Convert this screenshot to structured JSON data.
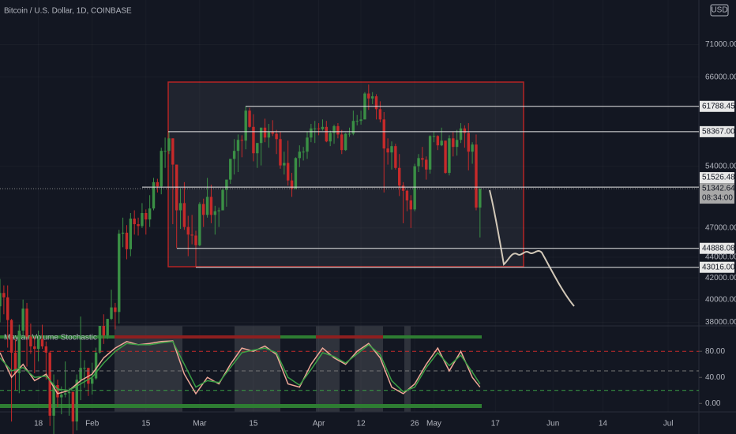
{
  "chart_data": {
    "type": "candlestick",
    "title": "Bitcoin / U.S. Dollar, 1D, COINBASE",
    "currency": "USD",
    "countdown": "08:34:00",
    "up_color": "#3a8f45",
    "down_color": "#c62a2a",
    "log_scale": true,
    "ylim": [
      37700,
      78500
    ],
    "xlim": [
      "01-08",
      "07-09"
    ],
    "x": [
      "01-08",
      "01-09",
      "01-10",
      "01-11",
      "01-12",
      "01-13",
      "01-14",
      "01-15",
      "01-16",
      "01-17",
      "01-18",
      "01-19",
      "01-20",
      "01-21",
      "01-22",
      "01-23",
      "01-24",
      "01-25",
      "01-26",
      "01-27",
      "01-28",
      "01-29",
      "01-30",
      "01-31",
      "02-01",
      "02-02",
      "02-03",
      "02-04",
      "02-05",
      "02-06",
      "02-07",
      "02-08",
      "02-09",
      "02-10",
      "02-11",
      "02-12",
      "02-13",
      "02-14",
      "02-15",
      "02-16",
      "02-17",
      "02-18",
      "02-19",
      "02-20",
      "02-21",
      "02-22",
      "02-23",
      "02-24",
      "02-25",
      "02-26",
      "02-27",
      "02-28",
      "03-01",
      "03-02",
      "03-03",
      "03-04",
      "03-05",
      "03-06",
      "03-07",
      "03-08",
      "03-09",
      "03-10",
      "03-11",
      "03-12",
      "03-13",
      "03-14",
      "03-15",
      "03-16",
      "03-17",
      "03-18",
      "03-19",
      "03-20",
      "03-21",
      "03-22",
      "03-23",
      "03-24",
      "03-25",
      "03-26",
      "03-27",
      "03-28",
      "03-29",
      "03-30",
      "03-31",
      "04-01",
      "04-02",
      "04-03",
      "04-04",
      "04-05",
      "04-06",
      "04-07",
      "04-08",
      "04-09",
      "04-10",
      "04-11",
      "04-12",
      "04-13",
      "04-14",
      "04-15",
      "04-16",
      "04-17",
      "04-18",
      "04-19",
      "04-20",
      "04-21",
      "04-22",
      "04-23",
      "04-24",
      "04-25",
      "04-26",
      "04-27",
      "04-28",
      "04-29",
      "04-30",
      "05-01",
      "05-02",
      "05-03",
      "05-04",
      "05-05",
      "05-06",
      "05-07",
      "05-08",
      "05-09",
      "05-10",
      "05-11",
      "05-12",
      "05-13"
    ],
    "open": [
      39400,
      40600,
      40200,
      38200,
      35500,
      33900,
      37300,
      39200,
      36800,
      36000,
      35800,
      36600,
      36000,
      35500,
      30800,
      33000,
      32100,
      32300,
      32400,
      32500,
      30400,
      33400,
      34300,
      34300,
      33100,
      33500,
      35500,
      37700,
      36900,
      38300,
      39300,
      38900,
      46400,
      46500,
      44800,
      48000,
      47400,
      47200,
      48600,
      47900,
      49100,
      52100,
      51600,
      55900,
      55900,
      57500,
      54200,
      48900,
      49700,
      47100,
      46300,
      46200,
      45200,
      49600,
      48400,
      50400,
      48400,
      48800,
      48900,
      51200,
      52400,
      54900,
      55900,
      57300,
      57200,
      61200,
      59000,
      55600,
      56900,
      58900,
      57600,
      58300,
      58100,
      57400,
      54100,
      54400,
      52300,
      51300,
      55000,
      55800,
      55800,
      57600,
      58800,
      58800,
      58700,
      59000,
      57100,
      58200,
      59100,
      58000,
      56000,
      58100,
      58100,
      59800,
      59800,
      60000,
      63600,
      62900,
      63200,
      61400,
      60000,
      56200,
      55700,
      56500,
      53800,
      51700,
      51100,
      50000,
      49000,
      54000,
      55000,
      54800,
      53600,
      57800,
      57800,
      56600,
      57200,
      53200,
      57500,
      56400,
      57300,
      58800,
      58200,
      55800,
      56700,
      49200
    ],
    "high": [
      41900,
      41300,
      41300,
      38300,
      36600,
      37800,
      40000,
      39700,
      37900,
      36800,
      37300,
      37800,
      36400,
      35600,
      33800,
      33400,
      32900,
      34800,
      32800,
      32500,
      33800,
      38500,
      34900,
      34300,
      34700,
      35900,
      37700,
      38700,
      38300,
      40900,
      39700,
      46800,
      48100,
      47300,
      48600,
      48900,
      48100,
      49700,
      49000,
      50600,
      52600,
      52500,
      56300,
      57600,
      58400,
      57500,
      54200,
      51400,
      52100,
      48300,
      48400,
      46700,
      49800,
      50200,
      52600,
      51800,
      49400,
      49200,
      51400,
      52400,
      54900,
      57400,
      58000,
      57900,
      61800,
      61600,
      60700,
      56900,
      58900,
      60100,
      59400,
      59900,
      58600,
      58400,
      55800,
      57200,
      53200,
      55100,
      56600,
      56400,
      58400,
      59400,
      59800,
      59500,
      60000,
      59800,
      58500,
      59300,
      59500,
      58600,
      58200,
      58900,
      61200,
      60600,
      61200,
      63800,
      64900,
      63800,
      63500,
      62500,
      61000,
      57500,
      57100,
      56800,
      55500,
      52100,
      51200,
      50600,
      54300,
      55500,
      56400,
      55200,
      57900,
      58400,
      57900,
      58900,
      57200,
      57900,
      58300,
      58600,
      59500,
      59200,
      59500,
      57000,
      58000,
      51400
    ],
    "low": [
      38000,
      38700,
      35900,
      30400,
      32600,
      32400,
      36700,
      34400,
      35400,
      33900,
      34800,
      35800,
      33400,
      30100,
      28900,
      31400,
      30900,
      32100,
      30800,
      29200,
      29800,
      31900,
      32800,
      32200,
      32300,
      33400,
      35400,
      36200,
      36600,
      38200,
      37400,
      37900,
      45000,
      43800,
      44100,
      46300,
      46200,
      47000,
      46300,
      47100,
      48900,
      50900,
      50700,
      53800,
      55500,
      47400,
      44900,
      46900,
      46800,
      44100,
      45300,
      43000,
      45100,
      47100,
      48100,
      47500,
      46300,
      47100,
      48900,
      49300,
      51900,
      53000,
      53300,
      55100,
      56100,
      58900,
      54600,
      53800,
      54100,
      57000,
      56300,
      57800,
      55500,
      53700,
      53000,
      51700,
      50400,
      51300,
      53900,
      54700,
      54900,
      57000,
      56900,
      57900,
      58500,
      57000,
      56500,
      56800,
      57500,
      55500,
      55900,
      57700,
      57900,
      59200,
      59300,
      60000,
      61300,
      62100,
      60000,
      59600,
      50900,
      54200,
      53600,
      53600,
      50500,
      47500,
      48800,
      47000,
      48800,
      53300,
      53900,
      52400,
      53100,
      57000,
      56000,
      56500,
      53100,
      52900,
      55200,
      55300,
      56900,
      56300,
      53500,
      54300,
      48900,
      46000
    ],
    "close": [
      40600,
      40200,
      38200,
      35500,
      33900,
      37300,
      39200,
      36800,
      36000,
      35800,
      36600,
      36000,
      35500,
      30800,
      33000,
      32100,
      32300,
      32400,
      32500,
      30400,
      33400,
      34300,
      34300,
      33100,
      33500,
      35500,
      37700,
      36900,
      38300,
      39300,
      38900,
      46400,
      46500,
      44800,
      48000,
      47400,
      47200,
      48600,
      47900,
      49100,
      52100,
      51600,
      55900,
      55900,
      57500,
      54200,
      48900,
      49700,
      47100,
      46300,
      46200,
      45200,
      49600,
      48400,
      50400,
      48400,
      48800,
      48900,
      51200,
      52400,
      54900,
      55900,
      57300,
      57200,
      61200,
      59000,
      55600,
      56900,
      58900,
      57600,
      58300,
      58100,
      57400,
      54100,
      54400,
      52300,
      51300,
      55000,
      55800,
      55800,
      57600,
      58800,
      58800,
      58700,
      59000,
      57100,
      58200,
      59100,
      58000,
      56000,
      58100,
      58100,
      59800,
      59800,
      60000,
      63600,
      62900,
      63200,
      61400,
      60000,
      56200,
      55700,
      56500,
      53800,
      51700,
      51100,
      50000,
      49000,
      54000,
      55000,
      54800,
      53600,
      57800,
      57800,
      56600,
      57200,
      53200,
      57500,
      56400,
      57300,
      58800,
      58200,
      55800,
      56700,
      49200,
      51342.64
    ],
    "yticks": [
      {
        "value": 71000,
        "label": "71000.00"
      },
      {
        "value": 66000,
        "label": "66000.00"
      },
      {
        "value": 54000,
        "label": "54000.00"
      },
      {
        "value": 47000,
        "label": "47000.00"
      },
      {
        "value": 44000,
        "label": "44000.00"
      },
      {
        "value": 42000,
        "label": "42000.00"
      },
      {
        "value": 40000,
        "label": "40000.00"
      },
      {
        "value": 38000,
        "label": "38000.00"
      }
    ],
    "price_lines": [
      61788.45,
      {
        "value": 58367,
        "label": "58367.00"
      },
      51526.48,
      44888.08,
      {
        "value": 43016,
        "label": "43016.00"
      }
    ],
    "xticks": [
      {
        "value": "01-18",
        "label": "18"
      },
      {
        "value": "02-01",
        "label": "Feb"
      },
      {
        "value": "02-15",
        "label": "15"
      },
      {
        "value": "03-01",
        "label": "Mar"
      },
      {
        "value": "03-15",
        "label": "15"
      },
      {
        "value": "04-01",
        "label": "Apr"
      },
      {
        "value": "04-12",
        "label": "12"
      },
      {
        "value": "04-26",
        "label": "26"
      },
      {
        "value": "05-01",
        "label": "May"
      },
      {
        "value": "05-17",
        "label": "17"
      },
      {
        "value": "06-01",
        "label": "Jun"
      },
      {
        "value": "06-14",
        "label": "14"
      },
      {
        "value": "07-01",
        "label": "Jul"
      }
    ],
    "indicator": {
      "title": "Mayfair Volume Stochastic",
      "ylim": [
        -13,
        119
      ],
      "yticks": [
        {
          "value": 80,
          "label": "80.00"
        },
        {
          "value": 40,
          "label": "40.00"
        },
        {
          "value": 0,
          "label": "0.00"
        }
      ],
      "levels": [
        {
          "value": 80,
          "color": "#c62a2a"
        },
        {
          "value": 50,
          "color": "#777777"
        },
        {
          "value": 20,
          "color": "#3a9f45"
        }
      ],
      "x": [
        "01-08",
        "01-11",
        "01-14",
        "01-17",
        "01-20",
        "01-23",
        "01-26",
        "01-29",
        "02-01",
        "02-04",
        "02-07",
        "02-10",
        "02-13",
        "02-16",
        "02-19",
        "02-22",
        "02-25",
        "02-28",
        "03-03",
        "03-06",
        "03-09",
        "03-12",
        "03-15",
        "03-18",
        "03-21",
        "03-24",
        "03-27",
        "03-30",
        "04-02",
        "04-05",
        "04-08",
        "04-11",
        "04-14",
        "04-17",
        "04-20",
        "04-23",
        "04-26",
        "04-29",
        "05-02",
        "05-05",
        "05-08",
        "05-11",
        "05-13"
      ],
      "series": [
        {
          "color": "#f0a898",
          "values": [
            78,
            40,
            60,
            35,
            45,
            15,
            20,
            35,
            45,
            70,
            85,
            95,
            90,
            92,
            95,
            96,
            45,
            15,
            40,
            30,
            60,
            85,
            80,
            88,
            75,
            30,
            25,
            60,
            85,
            70,
            60,
            80,
            92,
            70,
            25,
            15,
            30,
            60,
            85,
            50,
            80,
            40,
            25
          ]
        },
        {
          "color": "#3a9f45",
          "values": [
            70,
            50,
            55,
            40,
            42,
            22,
            20,
            30,
            40,
            62,
            80,
            92,
            90,
            90,
            93,
            95,
            60,
            25,
            35,
            32,
            55,
            78,
            82,
            85,
            78,
            40,
            28,
            52,
            78,
            72,
            62,
            76,
            90,
            75,
            35,
            18,
            25,
            55,
            78,
            58,
            74,
            48,
            30
          ]
        }
      ]
    }
  }
}
